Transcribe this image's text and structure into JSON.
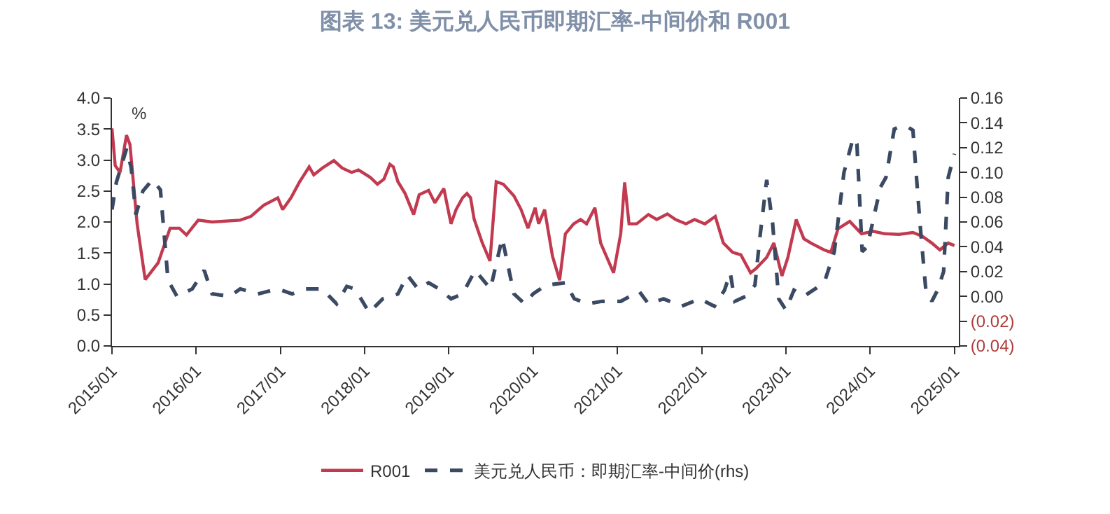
{
  "chart_data": {
    "type": "line",
    "title": "图表 13: 美元兑人民币即期汇率-中间价和 R001",
    "annotations": [
      "%"
    ],
    "xlim": [
      "2015-01-01",
      "2025-01-20"
    ],
    "xticks": [
      {
        "value": "2015-01-01",
        "label": "2015/01"
      },
      {
        "value": "2016-01-01",
        "label": "2016/01"
      },
      {
        "value": "2017-01-01",
        "label": "2017/01"
      },
      {
        "value": "2018-01-01",
        "label": "2018/01"
      },
      {
        "value": "2019-01-01",
        "label": "2019/01"
      },
      {
        "value": "2020-01-01",
        "label": "2020/01"
      },
      {
        "value": "2021-01-01",
        "label": "2021/01"
      },
      {
        "value": "2022-01-01",
        "label": "2022/01"
      },
      {
        "value": "2023-01-01",
        "label": "2023/01"
      },
      {
        "value": "2024-01-01",
        "label": "2024/01"
      },
      {
        "value": "2025-01-01",
        "label": "2025/01"
      }
    ],
    "ylim": [
      0,
      4
    ],
    "yticks": [
      {
        "value": 0,
        "label": "0.0"
      },
      {
        "value": 0.5,
        "label": "0.5"
      },
      {
        "value": 1,
        "label": "1.0"
      },
      {
        "value": 1.5,
        "label": "1.5"
      },
      {
        "value": 2,
        "label": "2.0"
      },
      {
        "value": 2.5,
        "label": "2.5"
      },
      {
        "value": 3,
        "label": "3.0"
      },
      {
        "value": 3.5,
        "label": "3.5"
      },
      {
        "value": 4,
        "label": "4.0"
      }
    ],
    "y2lim": [
      -0.04,
      0.16
    ],
    "y2ticks": [
      {
        "value": -0.04,
        "label": "(0.04)"
      },
      {
        "value": -0.02,
        "label": "(0.02)"
      },
      {
        "value": 0,
        "label": "0.00"
      },
      {
        "value": 0.02,
        "label": "0.02"
      },
      {
        "value": 0.04,
        "label": "0.04"
      },
      {
        "value": 0.06,
        "label": "0.06"
      },
      {
        "value": 0.08,
        "label": "0.08"
      },
      {
        "value": 0.1,
        "label": "0.10"
      },
      {
        "value": 0.12,
        "label": "0.12"
      },
      {
        "value": 0.14,
        "label": "0.14"
      },
      {
        "value": 0.16,
        "label": "0.16"
      }
    ],
    "grid": false,
    "legend": "bottom",
    "marker": "none",
    "series": [
      {
        "name": "R001",
        "color": "#c23a50",
        "line_style": "solid",
        "x": [
          "2015-01-01",
          "2015-01-15",
          "2015-02-05",
          "2015-03-05",
          "2015-03-20",
          "2015-04-20",
          "2015-05-25",
          "2015-07-20",
          "2015-09-10",
          "2015-10-20",
          "2015-11-20",
          "2016-01-10",
          "2016-03-10",
          "2016-07-10",
          "2016-08-25",
          "2016-10-20",
          "2016-12-20",
          "2017-01-10",
          "2017-02-15",
          "2017-03-25",
          "2017-05-05",
          "2017-05-25",
          "2017-07-01",
          "2017-08-20",
          "2017-09-25",
          "2017-11-05",
          "2017-12-05",
          "2018-01-25",
          "2018-02-25",
          "2018-03-25",
          "2018-04-20",
          "2018-05-05",
          "2018-05-25",
          "2018-06-25",
          "2018-08-01",
          "2018-08-25",
          "2018-10-05",
          "2018-11-01",
          "2018-12-10",
          "2019-01-10",
          "2019-02-01",
          "2019-03-01",
          "2019-03-20",
          "2019-04-05",
          "2019-04-20",
          "2019-05-25",
          "2019-06-28",
          "2019-07-25",
          "2019-08-25",
          "2019-10-10",
          "2019-11-10",
          "2019-12-10",
          "2020-01-10",
          "2020-01-25",
          "2020-02-20",
          "2020-03-25",
          "2020-04-25",
          "2020-05-20",
          "2020-06-25",
          "2020-07-25",
          "2020-08-20",
          "2020-09-25",
          "2020-10-20",
          "2020-12-15",
          "2021-01-15",
          "2021-02-01",
          "2021-02-20",
          "2021-03-25",
          "2021-05-15",
          "2021-06-20",
          "2021-08-05",
          "2021-09-10",
          "2021-10-25",
          "2021-12-01",
          "2022-01-15",
          "2022-03-01",
          "2022-04-05",
          "2022-05-15",
          "2022-06-20",
          "2022-08-01",
          "2022-08-25",
          "2022-10-10",
          "2022-11-10",
          "2022-12-15",
          "2023-01-10",
          "2023-02-15",
          "2023-03-20",
          "2023-04-20",
          "2023-06-15",
          "2023-07-15",
          "2023-08-15",
          "2023-10-05",
          "2023-11-25",
          "2024-01-15",
          "2024-03-05",
          "2024-05-05",
          "2024-07-05",
          "2024-08-15",
          "2024-09-25",
          "2024-10-30",
          "2024-12-05",
          "2025-01-01"
        ],
        "values": [
          3.51,
          2.91,
          2.8,
          3.4,
          3.25,
          1.97,
          1.07,
          1.34,
          1.9,
          1.9,
          1.79,
          2.03,
          2.0,
          2.03,
          2.09,
          2.27,
          2.39,
          2.2,
          2.39,
          2.65,
          2.89,
          2.76,
          2.87,
          2.99,
          2.87,
          2.8,
          2.84,
          2.72,
          2.61,
          2.69,
          2.93,
          2.89,
          2.65,
          2.46,
          2.12,
          2.44,
          2.51,
          2.31,
          2.54,
          1.97,
          2.2,
          2.39,
          2.46,
          2.39,
          2.05,
          1.67,
          1.37,
          2.65,
          2.61,
          2.42,
          2.2,
          1.9,
          2.23,
          1.97,
          2.2,
          1.45,
          1.06,
          1.81,
          1.97,
          2.04,
          1.97,
          2.23,
          1.66,
          1.18,
          1.81,
          2.64,
          1.97,
          1.97,
          2.12,
          2.04,
          2.13,
          2.04,
          1.97,
          2.04,
          1.97,
          2.09,
          1.66,
          1.51,
          1.47,
          1.18,
          1.25,
          1.43,
          1.66,
          1.13,
          1.43,
          2.04,
          1.73,
          1.66,
          1.55,
          1.51,
          1.89,
          2.01,
          1.81,
          1.85,
          1.81,
          1.8,
          1.83,
          1.77,
          1.66,
          1.55,
          1.66,
          1.62
        ]
      },
      {
        "name": "美元兑人民币：即期汇率-中间价(rhs)",
        "color": "#3b4a63",
        "line_style": "dashed",
        "axis": "y2",
        "x": [
          "2015-01-01",
          "2015-01-20",
          "2015-03-05",
          "2015-03-25",
          "2015-04-15",
          "2015-05-15",
          "2015-06-25",
          "2015-07-30",
          "2015-09-01",
          "2015-10-10",
          "2015-12-15",
          "2016-02-05",
          "2016-03-10",
          "2016-05-25",
          "2016-07-10",
          "2016-09-25",
          "2016-12-20",
          "2017-02-20",
          "2017-04-20",
          "2017-06-30",
          "2017-09-01",
          "2017-10-15",
          "2017-11-20",
          "2018-01-20",
          "2018-03-20",
          "2018-05-25",
          "2018-07-05",
          "2018-08-20",
          "2018-10-05",
          "2018-11-20",
          "2019-01-10",
          "2019-03-01",
          "2019-04-25",
          "2019-06-30",
          "2019-08-20",
          "2019-10-10",
          "2019-11-25",
          "2020-01-01",
          "2020-02-25",
          "2020-05-20",
          "2020-06-28",
          "2020-08-25",
          "2020-10-25",
          "2021-01-15",
          "2021-04-05",
          "2021-05-15",
          "2021-07-20",
          "2021-10-05",
          "2021-12-25",
          "2022-02-25",
          "2022-04-10",
          "2022-05-05",
          "2022-05-25",
          "2022-07-10",
          "2022-08-20",
          "2022-09-10",
          "2022-10-10",
          "2022-11-05",
          "2022-12-01",
          "2023-01-01",
          "2023-02-05",
          "2023-03-20",
          "2023-05-15",
          "2023-06-20",
          "2023-07-30",
          "2023-09-10",
          "2023-10-20",
          "2023-11-05",
          "2023-11-28",
          "2023-12-20",
          "2024-02-15",
          "2024-03-10",
          "2024-04-15",
          "2024-05-10",
          "2024-06-10",
          "2024-07-05",
          "2024-08-05",
          "2024-08-30",
          "2024-09-25",
          "2024-10-20",
          "2024-11-15",
          "2024-12-05",
          "2025-01-01"
        ],
        "values": [
          0.07,
          0.092,
          0.119,
          0.104,
          0.066,
          0.085,
          0.094,
          0.086,
          0.013,
          0.0,
          0.006,
          0.021,
          0.002,
          0.0,
          0.006,
          0.002,
          0.006,
          0.002,
          0.006,
          0.006,
          -0.006,
          0.008,
          0.006,
          -0.013,
          -0.002,
          0.002,
          0.017,
          0.006,
          0.011,
          0.006,
          -0.002,
          0.002,
          0.021,
          0.006,
          0.047,
          0.002,
          -0.006,
          0.002,
          0.009,
          0.011,
          -0.002,
          -0.006,
          -0.004,
          -0.004,
          0.004,
          -0.006,
          -0.002,
          -0.008,
          -0.002,
          -0.008,
          0.005,
          0.019,
          -0.004,
          0.0,
          0.009,
          0.047,
          0.094,
          0.058,
          -0.002,
          -0.011,
          0.005,
          0.0,
          0.007,
          0.013,
          0.036,
          0.1,
          0.128,
          0.123,
          0.036,
          0.04,
          0.088,
          0.096,
          0.135,
          0.137,
          0.137,
          0.134,
          0.058,
          0.005,
          -0.004,
          0.005,
          0.02,
          0.096,
          0.115
        ]
      }
    ]
  }
}
